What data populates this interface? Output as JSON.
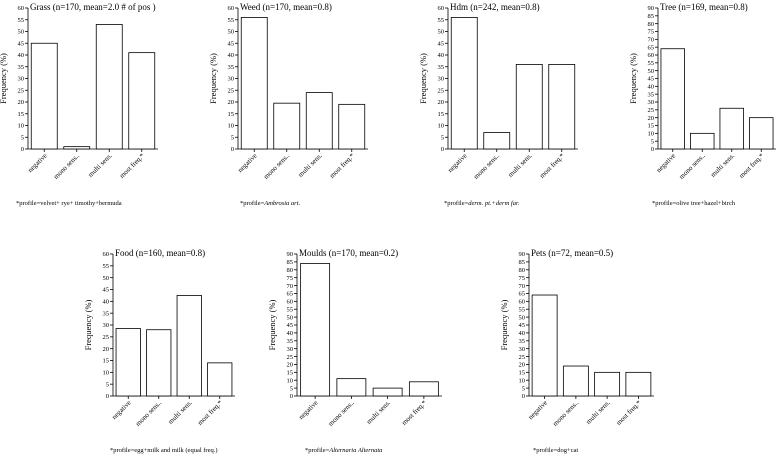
{
  "chart_data": [
    {
      "type": "bar",
      "title": "Grass (n=170, mean=2.0 # of pos )",
      "ylabel": "Frequency (%)",
      "categories": [
        "negative",
        "mono sens..",
        "multi sens.",
        "most freq.*"
      ],
      "values": [
        45,
        1,
        53,
        41
      ],
      "ylim": [
        0,
        60
      ],
      "yticks": [
        0,
        5,
        10,
        15,
        20,
        25,
        30,
        35,
        40,
        45,
        50,
        55,
        60
      ],
      "footnote": {
        "prefix": "*profile=",
        "text": "velvet+ rye+ timothy+bermuda",
        "italic": false
      }
    },
    {
      "type": "bar",
      "title": "Weed (n=170, mean=0.8)",
      "ylabel": "Frequency (%)",
      "categories": [
        "negative",
        "mono sens..",
        "multi sens.",
        "most freq.*"
      ],
      "values": [
        56,
        19.5,
        24,
        19
      ],
      "ylim": [
        0,
        60
      ],
      "yticks": [
        0,
        5,
        10,
        15,
        20,
        25,
        30,
        35,
        40,
        45,
        50,
        55,
        60
      ],
      "footnote": {
        "prefix": "*profile=",
        "text": "Ambrosia art.",
        "italic": true
      }
    },
    {
      "type": "bar",
      "title": "Hdm (n=242, mean=0.8)",
      "ylabel": "Frequency (%)",
      "categories": [
        "negative",
        "mono sens..",
        "multi sens.",
        "most freq.*"
      ],
      "values": [
        56,
        7,
        36,
        36
      ],
      "ylim": [
        0,
        60
      ],
      "yticks": [
        0,
        5,
        10,
        15,
        20,
        25,
        30,
        35,
        40,
        45,
        50,
        55,
        60
      ],
      "footnote": {
        "prefix": "*profile=",
        "text": "derm. pt.+derm far.",
        "italic": true
      }
    },
    {
      "type": "bar",
      "title": "Tree (n=169, mean=0.8)",
      "ylabel": "Frequency (%)",
      "categories": [
        "negative",
        "mono sens..",
        "multi sens.",
        "most freq.*"
      ],
      "values": [
        64,
        10,
        26,
        20
      ],
      "ylim": [
        0,
        90
      ],
      "yticks": [
        0,
        5,
        10,
        15,
        20,
        25,
        30,
        35,
        40,
        45,
        50,
        55,
        60,
        65,
        70,
        75,
        80,
        85,
        90
      ],
      "footnote": {
        "prefix": "*profile=",
        "text": "olive tree+hazel+birch",
        "italic": false
      }
    },
    {
      "type": "bar",
      "title": "Food (n=160, mean=0.8)",
      "ylabel": "Frequency (%)",
      "categories": [
        "negative",
        "mono sens..",
        "multi sens.",
        "most freq.*"
      ],
      "values": [
        28.5,
        28,
        42.5,
        14
      ],
      "ylim": [
        0,
        60
      ],
      "yticks": [
        0,
        5,
        10,
        15,
        20,
        25,
        30,
        35,
        40,
        45,
        50,
        55,
        60
      ],
      "footnote": {
        "prefix": "*profile=",
        "text": "egg+milk and milk (equal freq.)",
        "italic": false
      }
    },
    {
      "type": "bar",
      "title": "Moulds (n=170, mean=0.2)",
      "ylabel": "Frequency (%)",
      "categories": [
        "negative",
        "mono sens..",
        "multi sens.",
        "most freq.*"
      ],
      "values": [
        84,
        11,
        5,
        9
      ],
      "ylim": [
        0,
        90
      ],
      "yticks": [
        0,
        5,
        10,
        15,
        20,
        25,
        30,
        35,
        40,
        45,
        50,
        55,
        60,
        65,
        70,
        75,
        80,
        85,
        90
      ],
      "footnote": {
        "prefix": "*profile=",
        "text": "Alternaria Alternata",
        "italic": true
      }
    },
    {
      "type": "bar",
      "title": "Pets (n=72, mean=0.5)",
      "ylabel": "Frequency (%)",
      "categories": [
        "negative",
        "mono sens..",
        "multi sens.",
        "most freq.*"
      ],
      "values": [
        64,
        19,
        15,
        15
      ],
      "ylim": [
        0,
        90
      ],
      "yticks": [
        0,
        5,
        10,
        15,
        20,
        25,
        30,
        35,
        40,
        45,
        50,
        55,
        60,
        65,
        70,
        75,
        80,
        85,
        90
      ],
      "footnote": {
        "prefix": "*profile=",
        "text": "dog+cat",
        "italic": false
      }
    }
  ]
}
